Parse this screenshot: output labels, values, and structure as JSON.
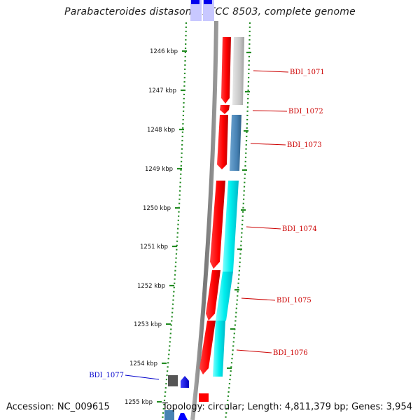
{
  "header": {
    "title": "Parabacteroides distasonis ATCC 8503, complete genome"
  },
  "footer": {
    "accession": "Accession: NC_009615",
    "summary": "Topology: circular; Length: 4,811,379 bp; Genes: 3,954"
  },
  "map": {
    "ticks": [
      {
        "label": "1246 kbp",
        "kbp": 1246
      },
      {
        "label": "1247 kbp",
        "kbp": 1247
      },
      {
        "label": "1248 kbp",
        "kbp": 1248
      },
      {
        "label": "1249 kbp",
        "kbp": 1249
      },
      {
        "label": "1250 kbp",
        "kbp": 1250
      },
      {
        "label": "1251 kbp",
        "kbp": 1251
      },
      {
        "label": "1252 kbp",
        "kbp": 1252
      },
      {
        "label": "1253 kbp",
        "kbp": 1253
      },
      {
        "label": "1254 kbp",
        "kbp": 1254
      },
      {
        "label": "1255 kbp",
        "kbp": 1255
      }
    ],
    "genes": [
      {
        "label": "BDI_1071",
        "color": "#cc0000",
        "strand": "reverse",
        "feature_color": "#c8c8c8"
      },
      {
        "label": "BDI_1072",
        "color": "#cc0000",
        "strand": "reverse",
        "feature_color": null
      },
      {
        "label": "BDI_1073",
        "color": "#cc0000",
        "strand": "reverse",
        "feature_color": "#4682b4"
      },
      {
        "label": "BDI_1074",
        "color": "#cc0000",
        "strand": "reverse",
        "feature_color": "#00e5ee"
      },
      {
        "label": "BDI_1075",
        "color": "#cc0000",
        "strand": "reverse",
        "feature_color": "#00e5ee"
      },
      {
        "label": "BDI_1076",
        "color": "#cc0000",
        "strand": "reverse",
        "feature_color": "#00e5ee"
      },
      {
        "label": "BDI_1077",
        "color": "#0000cc",
        "strand": "forward",
        "feature_color": "#555555"
      }
    ],
    "colors": {
      "backbone": "#888888",
      "tick": "#228b22",
      "reverse_gene": "#ff0000",
      "forward_gene": "#0000ff",
      "label_reverse": "#cc0000",
      "label_forward": "#0000cc"
    }
  }
}
